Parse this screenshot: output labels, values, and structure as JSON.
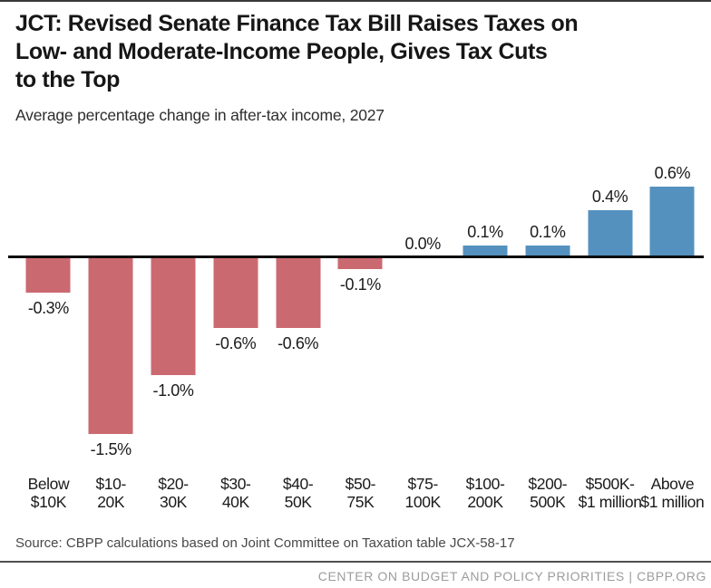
{
  "header": {
    "title": "JCT: Revised Senate Finance Tax Bill Raises Taxes on\nLow- and Moderate-Income People, Gives Tax Cuts\nto the Top",
    "subtitle": "Average percentage change in after-tax income, 2027"
  },
  "chart_data": {
    "type": "bar",
    "title": "JCT: Revised Senate Finance Tax Bill Raises Taxes on Low- and Moderate-Income People, Gives Tax Cuts to the Top",
    "subtitle": "Average percentage change in after-tax income, 2027",
    "xlabel": "",
    "ylabel": "Average percentage change in after-tax income",
    "categories": [
      "Below\n$10K",
      "$10-\n20K",
      "$20-\n30K",
      "$30-\n40K",
      "$40-\n50K",
      "$50-\n75K",
      "$75-\n100K",
      "$100-\n200K",
      "$200-\n500K",
      "$500K-\n$1 million",
      "Above\n$1 million"
    ],
    "values": [
      -0.3,
      -1.5,
      -1.0,
      -0.6,
      -0.6,
      -0.1,
      0.0,
      0.1,
      0.1,
      0.4,
      0.6
    ],
    "value_labels": [
      "-0.3%",
      "-1.5%",
      "-1.0%",
      "-0.6%",
      "-0.6%",
      "-0.1%",
      "0.0%",
      "0.1%",
      "0.1%",
      "0.4%",
      "0.6%"
    ],
    "ylim": [
      -1.7,
      0.8
    ],
    "grid": false,
    "legend": false,
    "colors": {
      "negative_bar": "#cb6970",
      "positive_bar": "#5591bf",
      "axis": "#0d0d0d"
    }
  },
  "footer": {
    "source": "Source: CBPP calculations based on Joint Committee on Taxation table JCX-58-17",
    "branding": "CENTER ON BUDGET AND POLICY PRIORITIES | CBPP.ORG"
  }
}
